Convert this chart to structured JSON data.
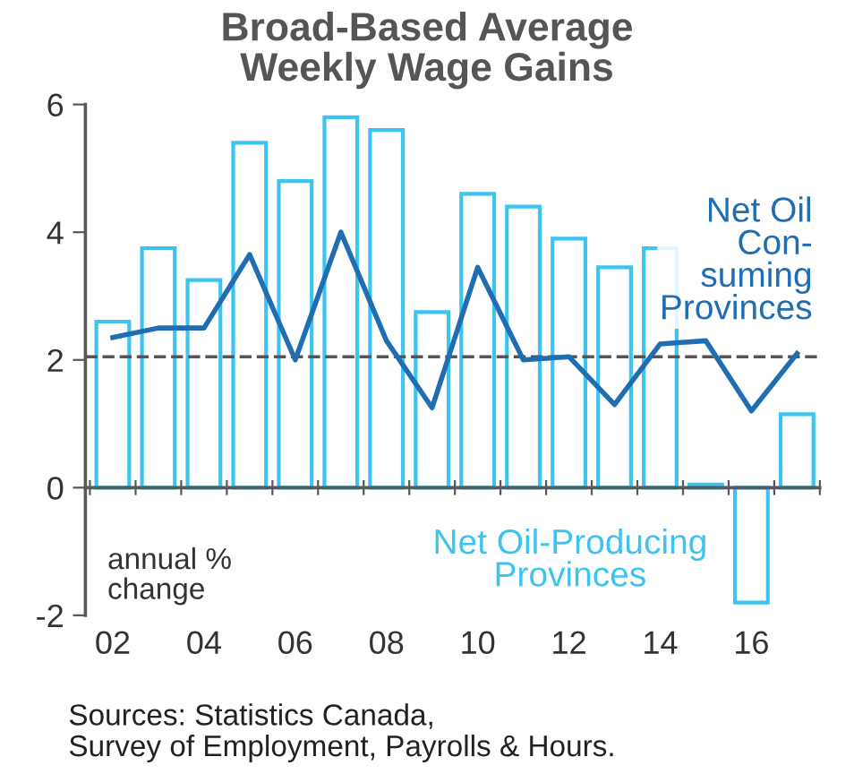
{
  "chart_data": {
    "type": "bar",
    "title": "Broad-Based Average\nWeekly Wage Gains",
    "categories": [
      "02",
      null,
      "04",
      null,
      "06",
      null,
      "08",
      null,
      "10",
      null,
      "12",
      null,
      "14",
      null,
      "16",
      null
    ],
    "series": [
      {
        "name": "Net Oil-Producing\nProvinces",
        "color": "#3cc3ef",
        "values": [
          2.6,
          3.75,
          3.25,
          5.4,
          4.8,
          5.8,
          5.6,
          2.75,
          4.6,
          4.4,
          3.9,
          3.45,
          3.75,
          0.05,
          -1.8,
          1.15
        ]
      },
      {
        "name": "Net Oil\nCon-\nsuming\nProvinces",
        "type": "line",
        "color": "#1f6db3",
        "values": [
          2.35,
          2.5,
          2.5,
          3.65,
          2.0,
          4.0,
          2.3,
          1.25,
          3.45,
          2.0,
          2.05,
          1.3,
          2.25,
          2.3,
          1.2,
          2.1
        ]
      }
    ],
    "ylim": [
      -2,
      6
    ],
    "yticks": [
      -2,
      0,
      2,
      4,
      6
    ],
    "ref_lines": [
      {
        "axis": "y",
        "value": 2.05,
        "color": "#555555",
        "line_style": "dashed"
      }
    ],
    "annotations": [
      "annual %\nchange",
      "Sources: Statistics Canada,\nSurvey of Employment, Payrolls & Hours."
    ],
    "legend": false
  }
}
